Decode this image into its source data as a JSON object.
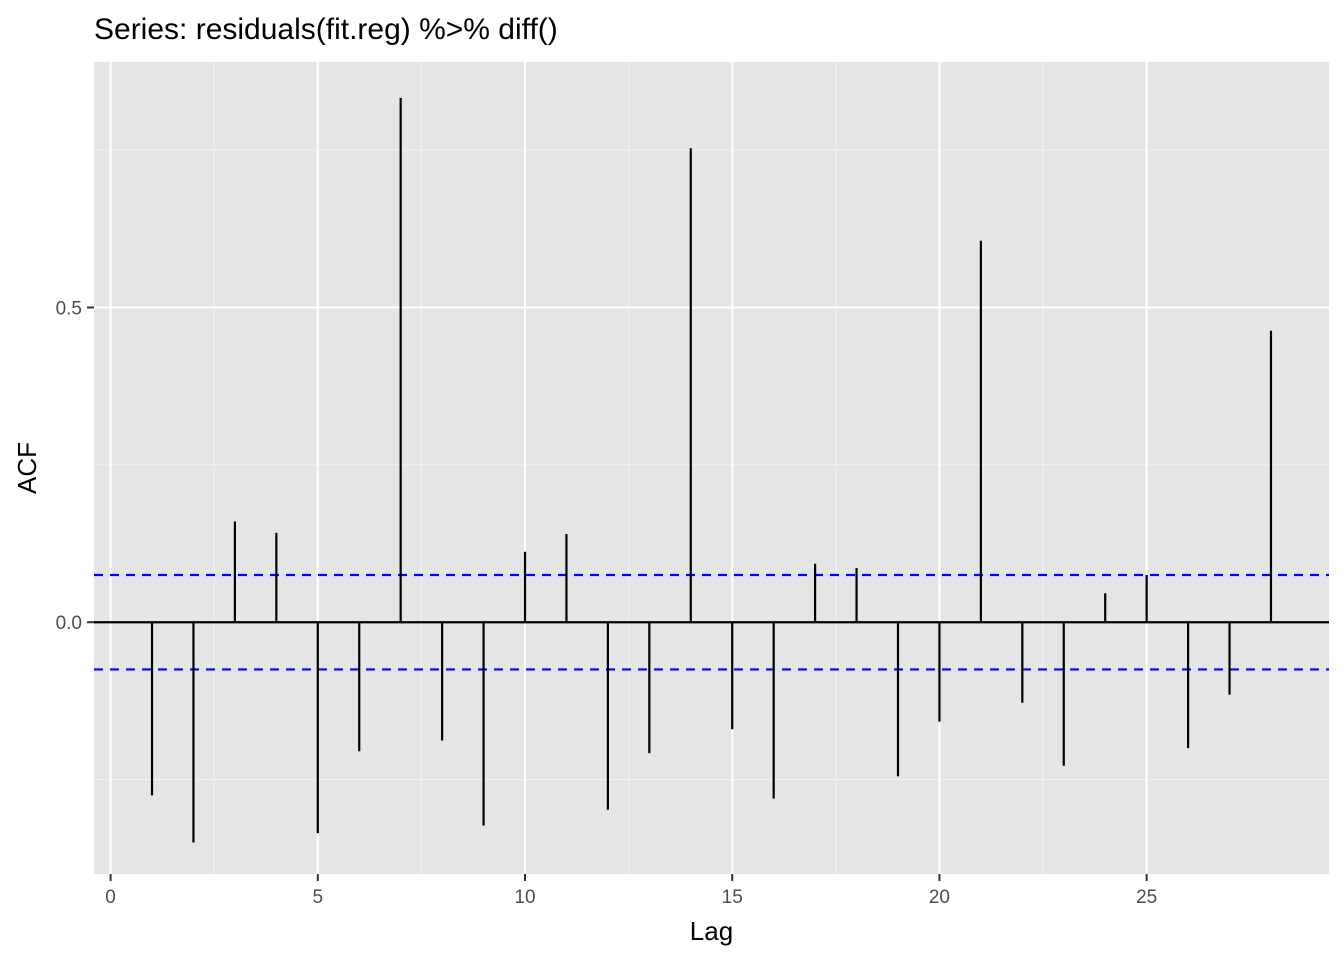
{
  "chart_data": {
    "type": "bar",
    "title": "Series: residuals(fit.reg) %>% diff()",
    "xlabel": "Lag",
    "ylabel": "ACF",
    "xlim": [
      -0.4,
      29.4
    ],
    "ylim": [
      -0.4,
      0.89
    ],
    "x_ticks": [
      {
        "value": 0,
        "label": "0"
      },
      {
        "value": 5,
        "label": "5"
      },
      {
        "value": 10,
        "label": "10"
      },
      {
        "value": 15,
        "label": "15"
      },
      {
        "value": 20,
        "label": "20"
      },
      {
        "value": 25,
        "label": "25"
      }
    ],
    "y_ticks": [
      {
        "value": 0.0,
        "label": "0.0"
      },
      {
        "value": 0.5,
        "label": "0.5"
      }
    ],
    "confidence_bound": 0.075,
    "grid": true,
    "series": [
      {
        "lags": [
          1,
          2,
          3,
          4,
          5,
          6,
          7,
          8,
          9,
          10,
          11,
          12,
          13,
          14,
          15,
          16,
          17,
          18,
          19,
          20,
          21,
          22,
          23,
          24,
          25,
          26,
          27,
          28
        ],
        "values": [
          -0.275,
          -0.35,
          0.16,
          0.142,
          -0.335,
          -0.205,
          0.833,
          -0.188,
          -0.323,
          0.112,
          0.14,
          -0.298,
          -0.208,
          0.753,
          -0.17,
          -0.28,
          0.093,
          0.086,
          -0.245,
          -0.158,
          0.606,
          -0.128,
          -0.228,
          0.046,
          0.075,
          -0.2,
          -0.115,
          0.463
        ]
      }
    ],
    "colors": {
      "panel_background": "#e5e5e5",
      "grid_major": "#ffffff",
      "grid_minor": "#f2f2f2",
      "spikes": "#000000",
      "confidence_line": "#0000ff",
      "axis_text": "#4d4d4d",
      "title_text": "#000000"
    }
  }
}
